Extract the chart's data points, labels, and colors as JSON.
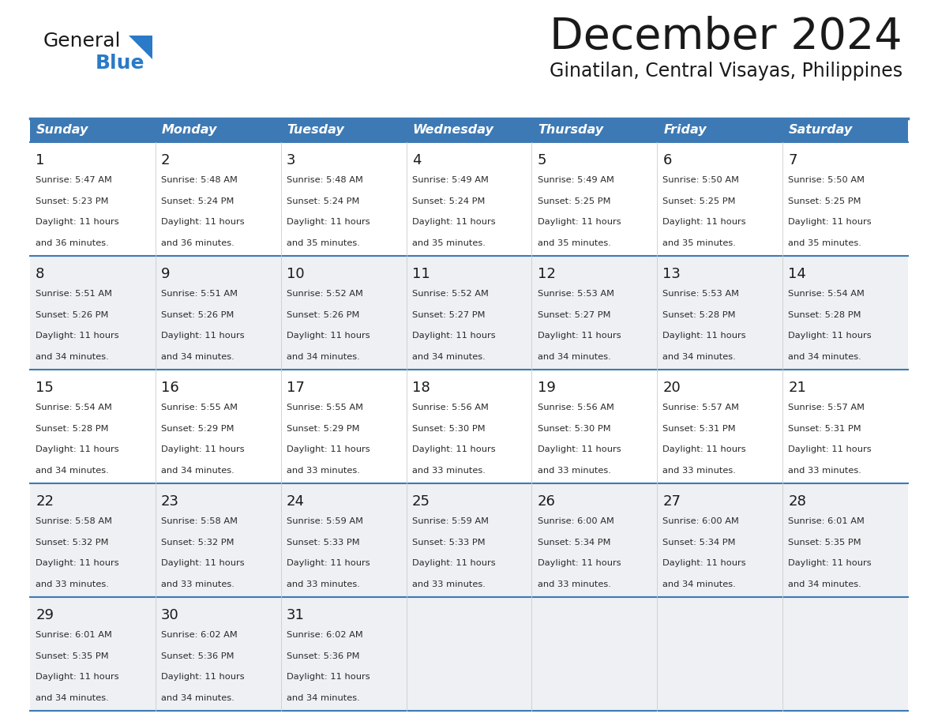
{
  "title": "December 2024",
  "subtitle": "Ginatilan, Central Visayas, Philippines",
  "header_color": "#3d7ab5",
  "header_text_color": "#ffffff",
  "row_bg_white": "#ffffff",
  "row_bg_gray": "#eef0f3",
  "border_color": "#3d7ab5",
  "text_dark": "#1a1a1a",
  "text_info": "#2a2a2a",
  "days_of_week": [
    "Sunday",
    "Monday",
    "Tuesday",
    "Wednesday",
    "Thursday",
    "Friday",
    "Saturday"
  ],
  "logo_black": "#1a1a1a",
  "logo_blue": "#2a7ac7",
  "logo_triangle": "#2a7ac7",
  "calendar_data": [
    {
      "week": 0,
      "days": [
        {
          "day": 1,
          "sunrise": "5:47 AM",
          "sunset": "5:23 PM",
          "daylight_suffix": "36 minutes."
        },
        {
          "day": 2,
          "sunrise": "5:48 AM",
          "sunset": "5:24 PM",
          "daylight_suffix": "36 minutes."
        },
        {
          "day": 3,
          "sunrise": "5:48 AM",
          "sunset": "5:24 PM",
          "daylight_suffix": "35 minutes."
        },
        {
          "day": 4,
          "sunrise": "5:49 AM",
          "sunset": "5:24 PM",
          "daylight_suffix": "35 minutes."
        },
        {
          "day": 5,
          "sunrise": "5:49 AM",
          "sunset": "5:25 PM",
          "daylight_suffix": "35 minutes."
        },
        {
          "day": 6,
          "sunrise": "5:50 AM",
          "sunset": "5:25 PM",
          "daylight_suffix": "35 minutes."
        },
        {
          "day": 7,
          "sunrise": "5:50 AM",
          "sunset": "5:25 PM",
          "daylight_suffix": "35 minutes."
        }
      ]
    },
    {
      "week": 1,
      "days": [
        {
          "day": 8,
          "sunrise": "5:51 AM",
          "sunset": "5:26 PM",
          "daylight_suffix": "34 minutes."
        },
        {
          "day": 9,
          "sunrise": "5:51 AM",
          "sunset": "5:26 PM",
          "daylight_suffix": "34 minutes."
        },
        {
          "day": 10,
          "sunrise": "5:52 AM",
          "sunset": "5:26 PM",
          "daylight_suffix": "34 minutes."
        },
        {
          "day": 11,
          "sunrise": "5:52 AM",
          "sunset": "5:27 PM",
          "daylight_suffix": "34 minutes."
        },
        {
          "day": 12,
          "sunrise": "5:53 AM",
          "sunset": "5:27 PM",
          "daylight_suffix": "34 minutes."
        },
        {
          "day": 13,
          "sunrise": "5:53 AM",
          "sunset": "5:28 PM",
          "daylight_suffix": "34 minutes."
        },
        {
          "day": 14,
          "sunrise": "5:54 AM",
          "sunset": "5:28 PM",
          "daylight_suffix": "34 minutes."
        }
      ]
    },
    {
      "week": 2,
      "days": [
        {
          "day": 15,
          "sunrise": "5:54 AM",
          "sunset": "5:28 PM",
          "daylight_suffix": "34 minutes."
        },
        {
          "day": 16,
          "sunrise": "5:55 AM",
          "sunset": "5:29 PM",
          "daylight_suffix": "34 minutes."
        },
        {
          "day": 17,
          "sunrise": "5:55 AM",
          "sunset": "5:29 PM",
          "daylight_suffix": "33 minutes."
        },
        {
          "day": 18,
          "sunrise": "5:56 AM",
          "sunset": "5:30 PM",
          "daylight_suffix": "33 minutes."
        },
        {
          "day": 19,
          "sunrise": "5:56 AM",
          "sunset": "5:30 PM",
          "daylight_suffix": "33 minutes."
        },
        {
          "day": 20,
          "sunrise": "5:57 AM",
          "sunset": "5:31 PM",
          "daylight_suffix": "33 minutes."
        },
        {
          "day": 21,
          "sunrise": "5:57 AM",
          "sunset": "5:31 PM",
          "daylight_suffix": "33 minutes."
        }
      ]
    },
    {
      "week": 3,
      "days": [
        {
          "day": 22,
          "sunrise": "5:58 AM",
          "sunset": "5:32 PM",
          "daylight_suffix": "33 minutes."
        },
        {
          "day": 23,
          "sunrise": "5:58 AM",
          "sunset": "5:32 PM",
          "daylight_suffix": "33 minutes."
        },
        {
          "day": 24,
          "sunrise": "5:59 AM",
          "sunset": "5:33 PM",
          "daylight_suffix": "33 minutes."
        },
        {
          "day": 25,
          "sunrise": "5:59 AM",
          "sunset": "5:33 PM",
          "daylight_suffix": "33 minutes."
        },
        {
          "day": 26,
          "sunrise": "6:00 AM",
          "sunset": "5:34 PM",
          "daylight_suffix": "33 minutes."
        },
        {
          "day": 27,
          "sunrise": "6:00 AM",
          "sunset": "5:34 PM",
          "daylight_suffix": "34 minutes."
        },
        {
          "day": 28,
          "sunrise": "6:01 AM",
          "sunset": "5:35 PM",
          "daylight_suffix": "34 minutes."
        }
      ]
    },
    {
      "week": 4,
      "days": [
        {
          "day": 29,
          "sunrise": "6:01 AM",
          "sunset": "5:35 PM",
          "daylight_suffix": "34 minutes."
        },
        {
          "day": 30,
          "sunrise": "6:02 AM",
          "sunset": "5:36 PM",
          "daylight_suffix": "34 minutes."
        },
        {
          "day": 31,
          "sunrise": "6:02 AM",
          "sunset": "5:36 PM",
          "daylight_suffix": "34 minutes."
        },
        null,
        null,
        null,
        null
      ]
    }
  ]
}
